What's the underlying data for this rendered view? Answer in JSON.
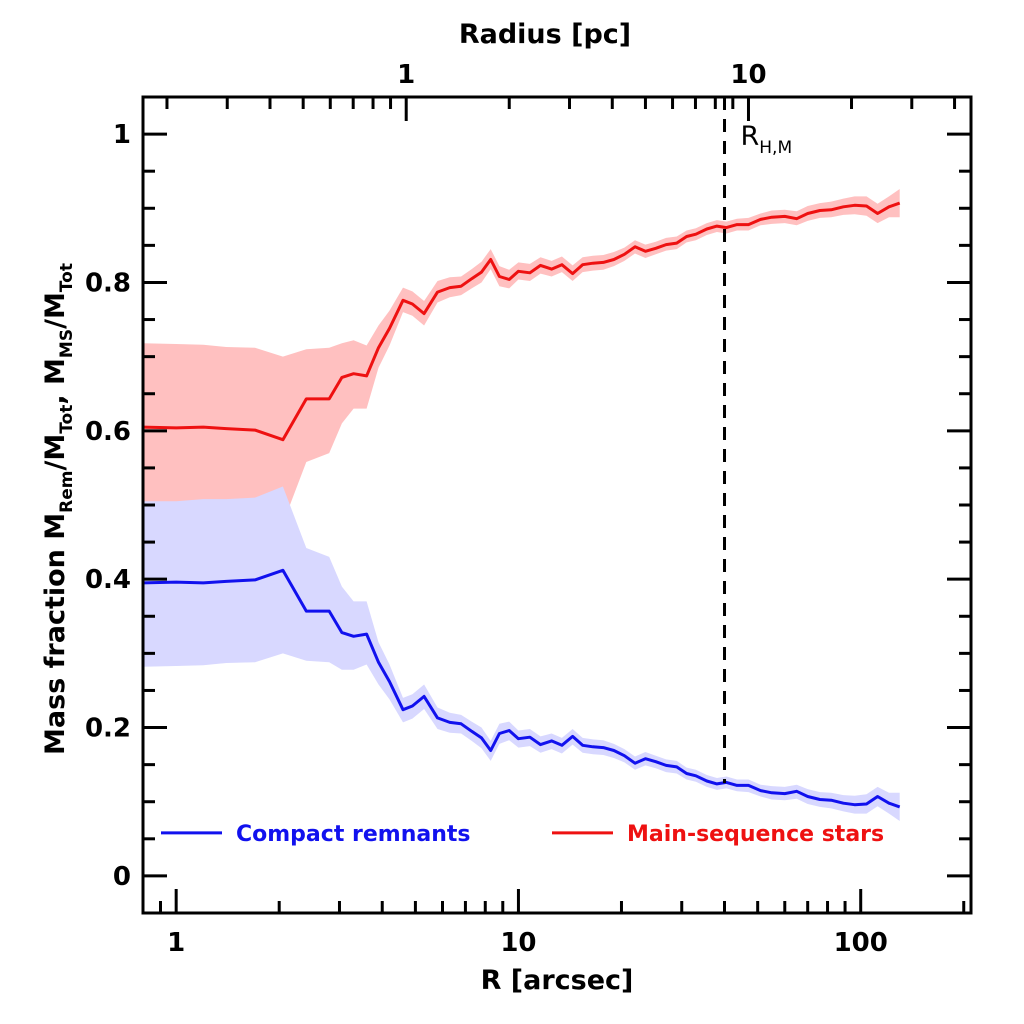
{
  "chart_data": {
    "type": "line",
    "xscale": "log",
    "xlim": [
      0.8,
      210
    ],
    "ylim": [
      -0.05,
      1.05
    ],
    "xlabel": "R [arcsec]",
    "top_xlabel": "Radius [pc]",
    "top_axis": {
      "arcsec_per_pc": 4.7,
      "tick_labels": [
        "1",
        "10"
      ],
      "tick_values_pc": [
        1,
        10
      ]
    },
    "ylabel": {
      "prefix": "Mass fraction   M",
      "sub1": "Rem",
      "mid1": "/M",
      "sub2": "Tot",
      "mid2": ",  M",
      "sub3": "MS",
      "mid3": "/M",
      "sub4": "Tot"
    },
    "x_tick_labels": [
      "1",
      "10",
      "100"
    ],
    "x_tick_values": [
      1,
      10,
      100
    ],
    "y_tick_labels": [
      "0",
      "0.2",
      "0.4",
      "0.6",
      "0.8",
      "1"
    ],
    "y_tick_values": [
      0,
      0.2,
      0.4,
      0.6,
      0.8,
      1.0
    ],
    "vline": {
      "x": 40,
      "label_main": "R",
      "label_sub": "H,M",
      "style": "dashed"
    },
    "series": [
      {
        "name": "Main-sequence stars",
        "color": "#ee1111",
        "band_color": "#ffc0c0",
        "x": [
          0.8,
          1.0,
          1.2,
          1.4,
          1.7,
          2.05,
          2.4,
          2.8,
          3.05,
          3.3,
          3.6,
          3.9,
          4.2,
          4.6,
          4.9,
          5.3,
          5.8,
          6.3,
          6.8,
          7.3,
          7.8,
          8.3,
          8.8,
          9.4,
          10.0,
          10.8,
          11.6,
          12.5,
          13.4,
          14.4,
          15.4,
          16.5,
          17.7,
          19.0,
          20.4,
          21.9,
          23.5,
          25.2,
          27.0,
          29.0,
          31.0,
          33.0,
          35.5,
          38.0,
          40.5,
          43.5,
          47.0,
          51.0,
          55.0,
          60.0,
          65.0,
          70.0,
          76.0,
          82.0,
          89.0,
          96.0,
          104.0,
          112.0,
          121.0,
          130.0
        ],
        "values": [
          0.605,
          0.604,
          0.605,
          0.603,
          0.601,
          0.588,
          0.643,
          0.643,
          0.672,
          0.677,
          0.674,
          0.712,
          0.738,
          0.776,
          0.771,
          0.758,
          0.787,
          0.793,
          0.795,
          0.805,
          0.814,
          0.831,
          0.808,
          0.804,
          0.815,
          0.813,
          0.823,
          0.818,
          0.824,
          0.812,
          0.824,
          0.826,
          0.827,
          0.831,
          0.838,
          0.848,
          0.842,
          0.846,
          0.851,
          0.853,
          0.862,
          0.865,
          0.872,
          0.876,
          0.874,
          0.878,
          0.878,
          0.885,
          0.888,
          0.889,
          0.886,
          0.893,
          0.897,
          0.898,
          0.902,
          0.904,
          0.903,
          0.893,
          0.902,
          0.907
        ],
        "lower": [
          0.495,
          0.495,
          0.492,
          0.492,
          0.49,
          0.475,
          0.558,
          0.57,
          0.61,
          0.63,
          0.63,
          0.685,
          0.715,
          0.76,
          0.755,
          0.742,
          0.773,
          0.78,
          0.783,
          0.792,
          0.8,
          0.818,
          0.795,
          0.792,
          0.804,
          0.802,
          0.812,
          0.808,
          0.814,
          0.802,
          0.814,
          0.816,
          0.817,
          0.822,
          0.829,
          0.839,
          0.833,
          0.838,
          0.843,
          0.845,
          0.854,
          0.857,
          0.864,
          0.868,
          0.866,
          0.87,
          0.87,
          0.877,
          0.879,
          0.88,
          0.877,
          0.883,
          0.887,
          0.888,
          0.891,
          0.892,
          0.89,
          0.88,
          0.888,
          0.888
        ],
        "upper": [
          0.718,
          0.717,
          0.716,
          0.713,
          0.712,
          0.7,
          0.71,
          0.712,
          0.718,
          0.722,
          0.715,
          0.742,
          0.762,
          0.793,
          0.788,
          0.775,
          0.802,
          0.807,
          0.808,
          0.818,
          0.828,
          0.845,
          0.822,
          0.817,
          0.827,
          0.825,
          0.834,
          0.829,
          0.835,
          0.823,
          0.834,
          0.836,
          0.837,
          0.841,
          0.847,
          0.857,
          0.851,
          0.855,
          0.86,
          0.862,
          0.87,
          0.873,
          0.88,
          0.884,
          0.882,
          0.886,
          0.887,
          0.893,
          0.897,
          0.898,
          0.896,
          0.903,
          0.907,
          0.909,
          0.913,
          0.916,
          0.916,
          0.906,
          0.916,
          0.926
        ]
      },
      {
        "name": "Compact remnants",
        "color": "#1111ee",
        "band_color": "#d8d8ff",
        "x": [
          0.8,
          1.0,
          1.2,
          1.4,
          1.7,
          2.05,
          2.4,
          2.8,
          3.05,
          3.3,
          3.6,
          3.9,
          4.2,
          4.6,
          4.9,
          5.3,
          5.8,
          6.3,
          6.8,
          7.3,
          7.8,
          8.3,
          8.8,
          9.4,
          10.0,
          10.8,
          11.6,
          12.5,
          13.4,
          14.4,
          15.4,
          16.5,
          17.7,
          19.0,
          20.4,
          21.9,
          23.5,
          25.2,
          27.0,
          29.0,
          31.0,
          33.0,
          35.5,
          38.0,
          40.5,
          43.5,
          47.0,
          51.0,
          55.0,
          60.0,
          65.0,
          70.0,
          76.0,
          82.0,
          89.0,
          96.0,
          104.0,
          112.0,
          121.0,
          130.0
        ],
        "values": [
          0.395,
          0.396,
          0.395,
          0.397,
          0.399,
          0.412,
          0.357,
          0.357,
          0.328,
          0.323,
          0.326,
          0.288,
          0.262,
          0.224,
          0.229,
          0.242,
          0.213,
          0.207,
          0.205,
          0.195,
          0.186,
          0.169,
          0.192,
          0.196,
          0.185,
          0.187,
          0.177,
          0.182,
          0.176,
          0.188,
          0.176,
          0.174,
          0.173,
          0.169,
          0.162,
          0.152,
          0.158,
          0.154,
          0.149,
          0.147,
          0.138,
          0.135,
          0.128,
          0.124,
          0.126,
          0.122,
          0.122,
          0.115,
          0.112,
          0.111,
          0.114,
          0.107,
          0.103,
          0.102,
          0.098,
          0.096,
          0.097,
          0.107,
          0.098,
          0.093
        ],
        "lower": [
          0.282,
          0.283,
          0.284,
          0.287,
          0.288,
          0.3,
          0.29,
          0.288,
          0.278,
          0.278,
          0.285,
          0.258,
          0.238,
          0.207,
          0.212,
          0.225,
          0.198,
          0.193,
          0.192,
          0.182,
          0.172,
          0.155,
          0.178,
          0.183,
          0.173,
          0.175,
          0.166,
          0.171,
          0.165,
          0.177,
          0.166,
          0.164,
          0.163,
          0.159,
          0.153,
          0.143,
          0.149,
          0.145,
          0.14,
          0.138,
          0.13,
          0.127,
          0.12,
          0.116,
          0.118,
          0.114,
          0.113,
          0.107,
          0.103,
          0.102,
          0.104,
          0.097,
          0.093,
          0.091,
          0.087,
          0.084,
          0.084,
          0.094,
          0.084,
          0.074
        ],
        "upper": [
          0.505,
          0.505,
          0.508,
          0.508,
          0.51,
          0.525,
          0.442,
          0.43,
          0.39,
          0.37,
          0.37,
          0.315,
          0.285,
          0.24,
          0.245,
          0.258,
          0.227,
          0.22,
          0.217,
          0.208,
          0.2,
          0.182,
          0.205,
          0.208,
          0.196,
          0.198,
          0.188,
          0.192,
          0.186,
          0.198,
          0.186,
          0.184,
          0.183,
          0.178,
          0.171,
          0.161,
          0.167,
          0.162,
          0.157,
          0.155,
          0.146,
          0.143,
          0.136,
          0.132,
          0.134,
          0.13,
          0.13,
          0.123,
          0.121,
          0.12,
          0.123,
          0.117,
          0.113,
          0.112,
          0.109,
          0.108,
          0.11,
          0.12,
          0.112,
          0.112
        ]
      }
    ],
    "legend": {
      "placement": "bottom",
      "entries": [
        {
          "label": "Compact remnants",
          "color": "#1111ee"
        },
        {
          "label": "Main-sequence stars",
          "color": "#ee1111"
        }
      ]
    }
  }
}
